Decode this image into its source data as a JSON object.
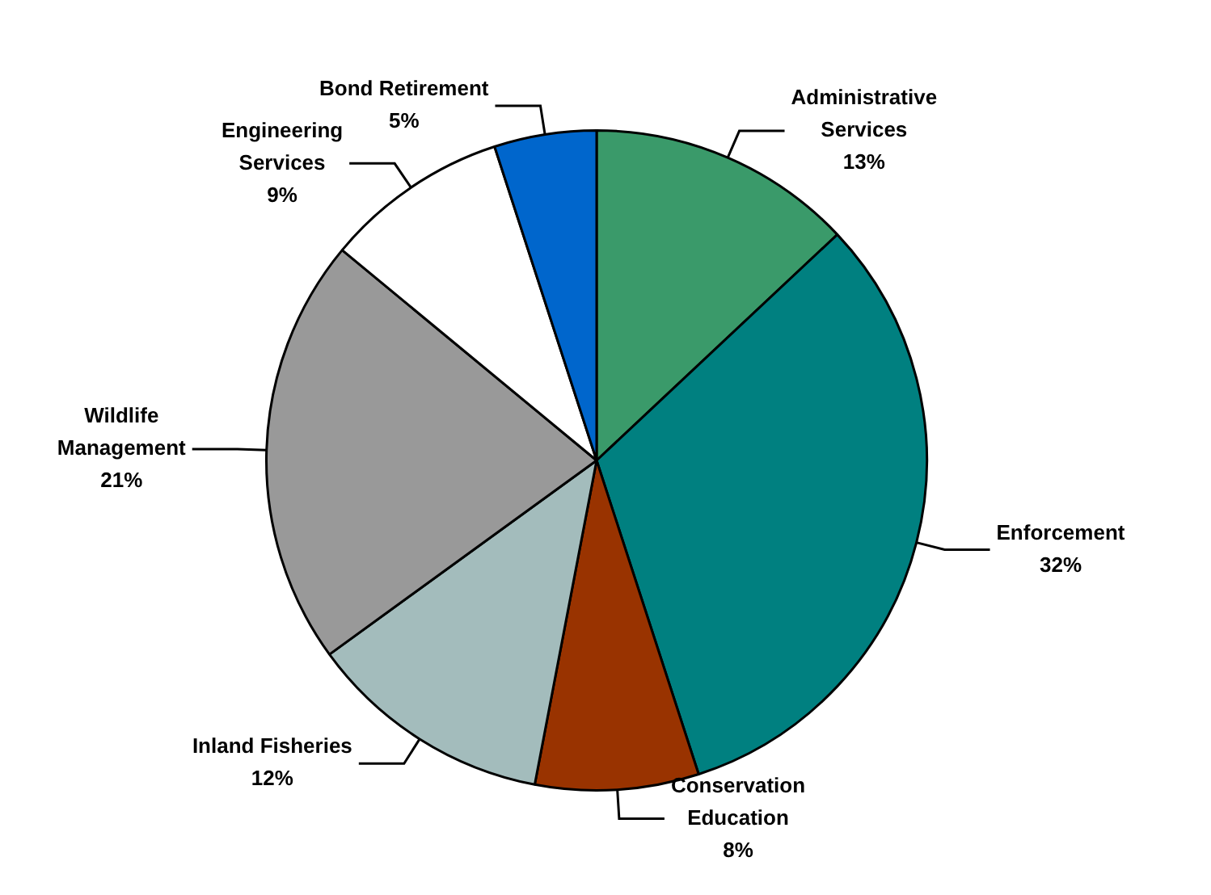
{
  "chart_data": {
    "type": "pie",
    "categories": [
      "Administrative Services",
      "Enforcement",
      "Conservation Education",
      "Inland Fisheries",
      "Wildlife Management",
      "Engineering Services",
      "Bond Retirement"
    ],
    "values": [
      13,
      32,
      8,
      12,
      21,
      9,
      5
    ],
    "colors": [
      "#3a9a6a",
      "#008080",
      "#993300",
      "#a3bcbc",
      "#999999",
      "#ffffff",
      "#0066cc"
    ],
    "value_labels": [
      "13%",
      "32%",
      "8%",
      "12%",
      "21%",
      "9%",
      "5%"
    ],
    "legend": false
  }
}
